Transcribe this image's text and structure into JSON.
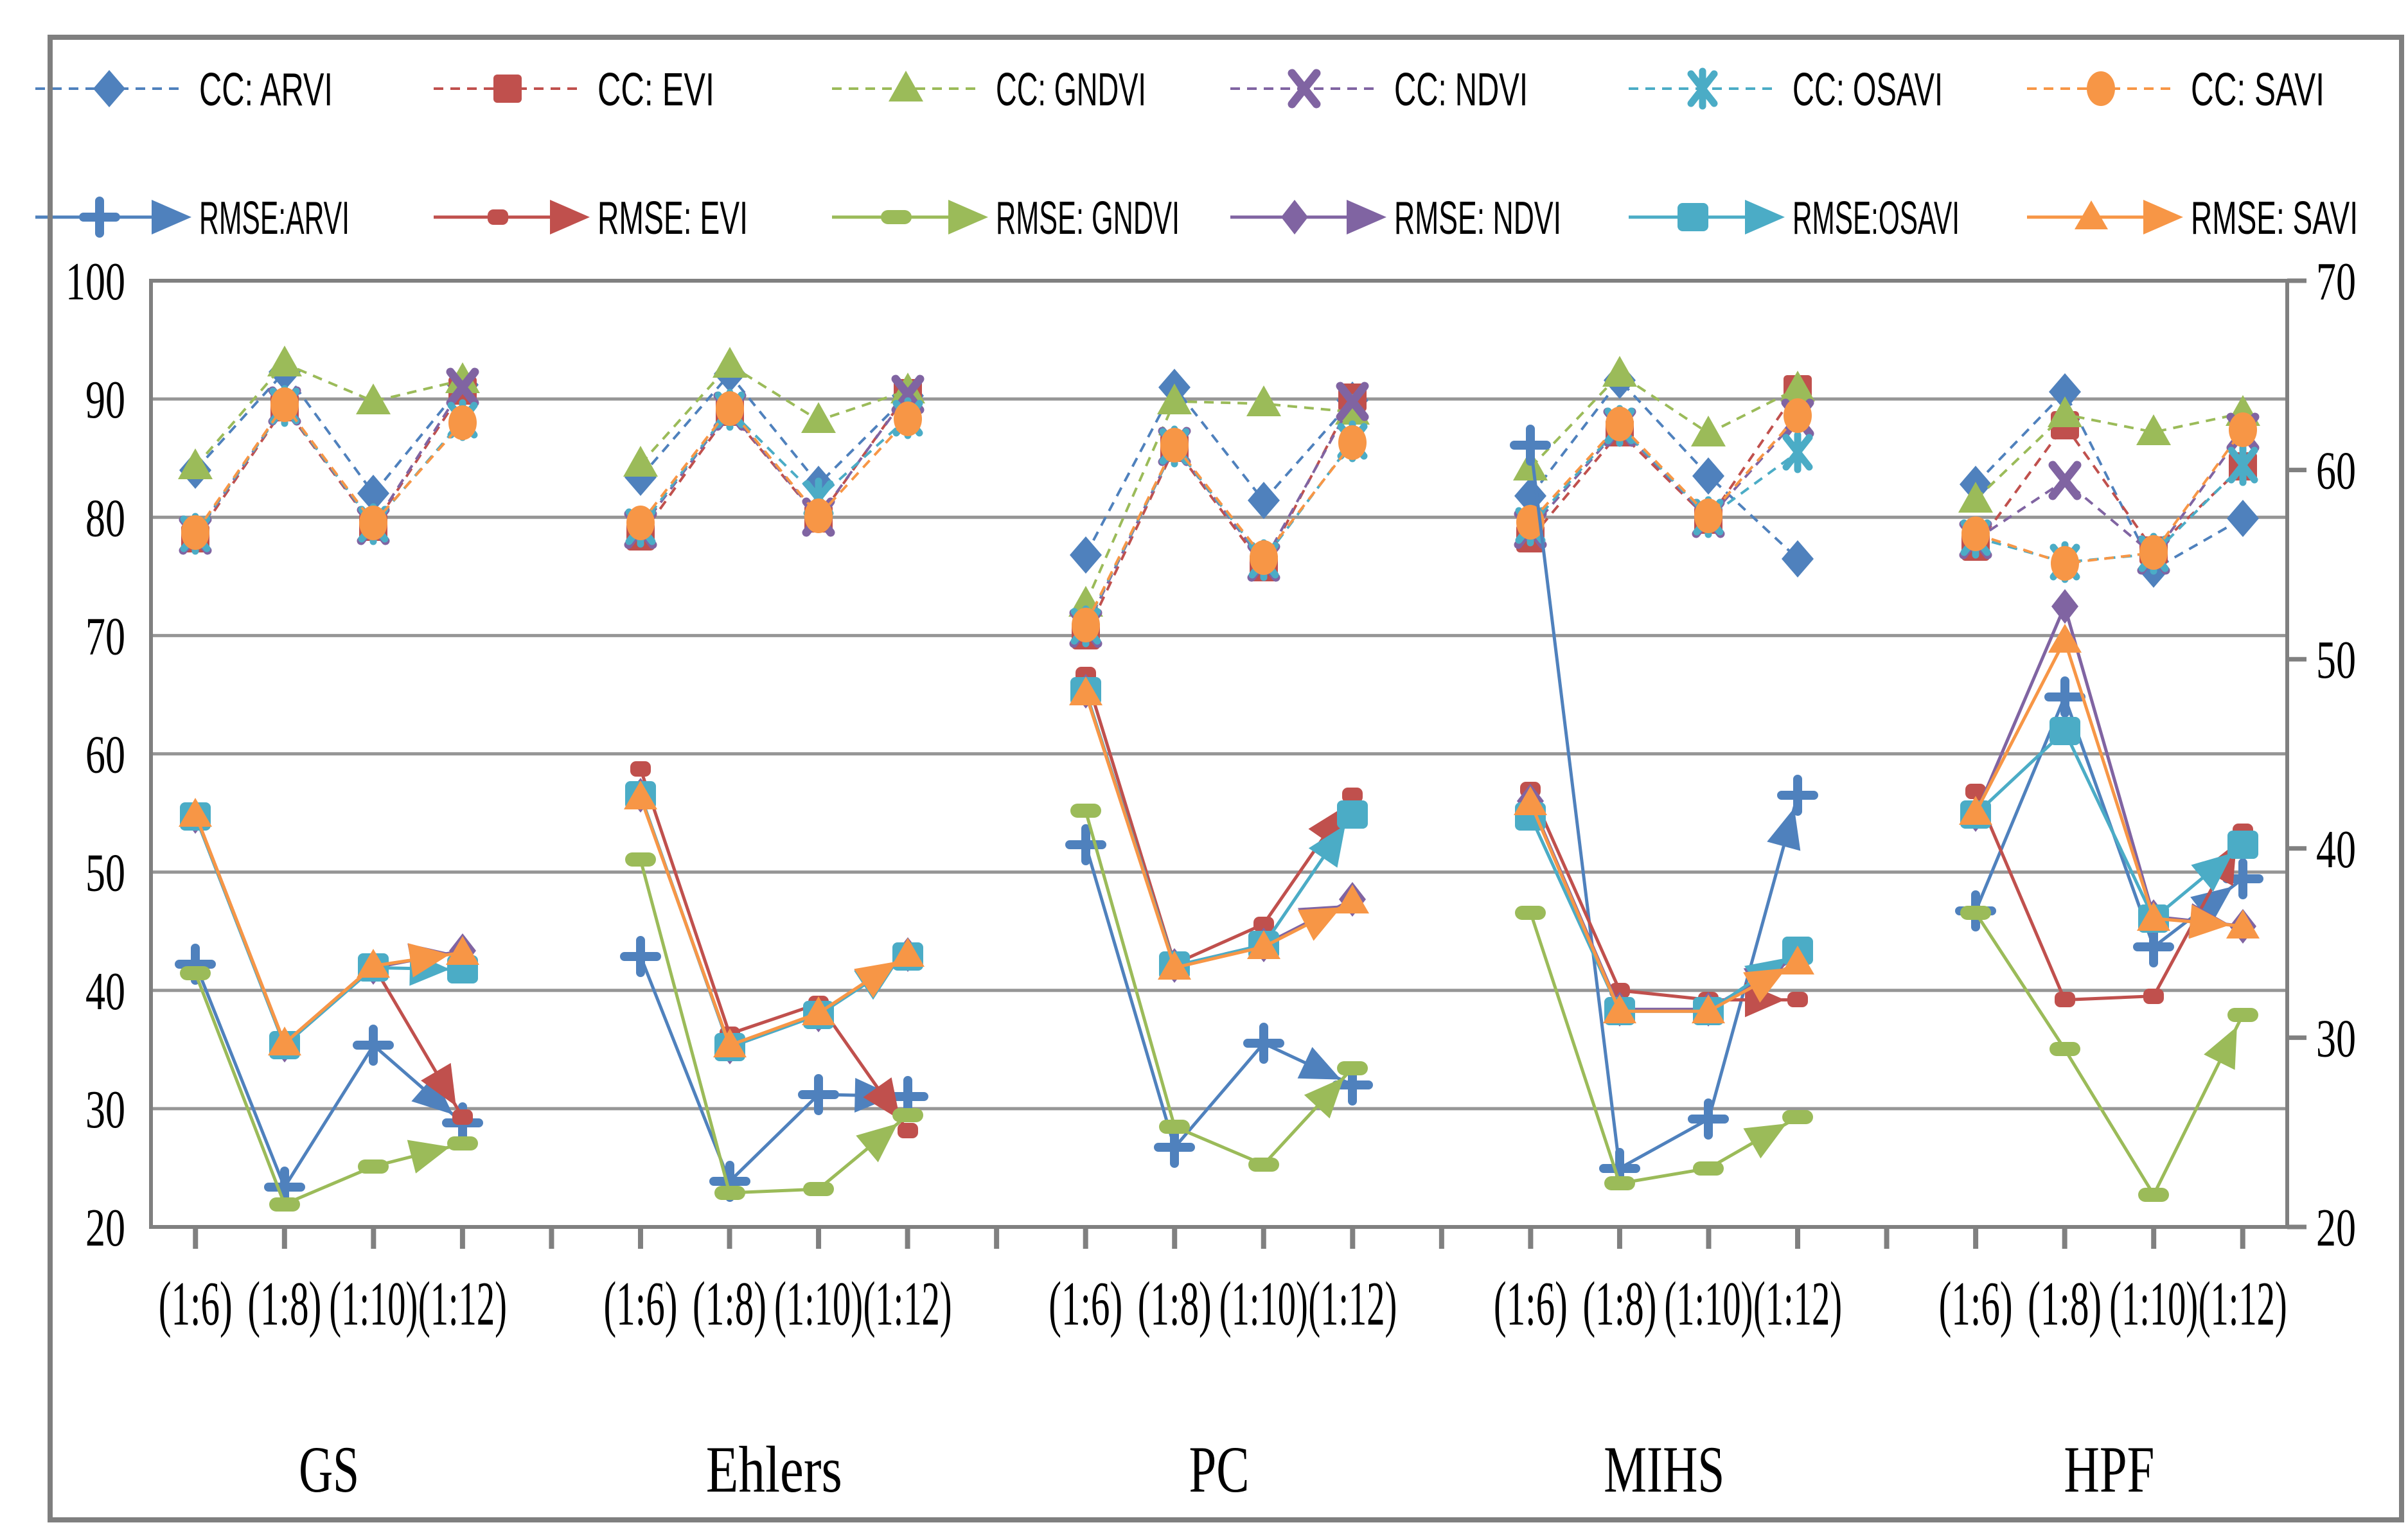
{
  "figure": {
    "background": "#ffffff",
    "outer_border_color": "#7f7f7f",
    "plot_border_color": "#808080",
    "gridline_color": "#969696"
  },
  "chart_data": {
    "type": "line",
    "title": "",
    "groups": [
      "GS",
      "Ehlers",
      "PC",
      "MIHS",
      "HPF"
    ],
    "categories": [
      "(1:6)",
      "(1:8)",
      "(1:10)",
      "(1:12)"
    ],
    "left_axis": {
      "min": 20,
      "max": 100,
      "step": 10,
      "ticks": [
        100,
        90,
        80,
        70,
        60,
        50,
        40,
        30,
        20
      ]
    },
    "right_axis": {
      "min": 20,
      "max": 70,
      "step": 10,
      "ticks": [
        70,
        60,
        50,
        40,
        30,
        20
      ]
    },
    "grid": true,
    "legend_position": "top",
    "series": [
      {
        "name": "CC: ARVI",
        "axis": "left",
        "color": "#4F81BD",
        "marker": "diamond",
        "line": "dashed",
        "arrow": false,
        "values": [
          [
            84.0,
            92.3,
            82.0,
            91.2
          ],
          [
            83.4,
            92.1,
            82.8,
            90.3
          ],
          [
            76.8,
            91.0,
            81.4,
            89.9
          ],
          [
            81.8,
            91.6,
            83.5,
            76.5
          ],
          [
            82.8,
            90.6,
            75.6,
            79.9
          ]
        ]
      },
      {
        "name": "CC: EVI",
        "axis": "left",
        "color": "#C0504D",
        "marker": "square",
        "line": "dashed",
        "arrow": false,
        "values": [
          [
            78.2,
            89.3,
            79.2,
            90.7
          ],
          [
            78.4,
            88.9,
            79.9,
            90.5
          ],
          [
            70.0,
            85.9,
            75.8,
            90.1
          ],
          [
            78.2,
            87.2,
            79.8,
            90.8
          ],
          [
            77.5,
            87.8,
            77.2,
            84.3
          ]
        ]
      },
      {
        "name": "CC: GNDVI",
        "axis": "left",
        "color": "#9BBB59",
        "marker": "triangle",
        "line": "dashed",
        "arrow": false,
        "values": [
          [
            84.3,
            93.0,
            89.8,
            91.6
          ],
          [
            84.5,
            92.9,
            88.2,
            90.7
          ],
          [
            72.7,
            89.8,
            89.6,
            88.9
          ],
          [
            84.2,
            92.1,
            87.1,
            90.9
          ],
          [
            81.5,
            88.7,
            87.2,
            88.8
          ]
        ]
      },
      {
        "name": "CC: NDVI",
        "axis": "left",
        "color": "#8064A2",
        "marker": "xmark",
        "line": "dashed",
        "arrow": false,
        "values": [
          [
            78.5,
            89.4,
            79.3,
            91.0
          ],
          [
            79.0,
            89.0,
            80.0,
            90.4
          ],
          [
            70.6,
            86.0,
            76.2,
            89.8
          ],
          [
            79.0,
            87.6,
            79.9,
            88.4
          ],
          [
            78.1,
            83.1,
            76.8,
            87.2
          ]
        ]
      },
      {
        "name": "CC: OSAVI",
        "axis": "left",
        "color": "#4BACC6",
        "marker": "star",
        "line": "dashed",
        "arrow": false,
        "values": [
          [
            78.6,
            89.4,
            79.4,
            88.2
          ],
          [
            79.2,
            89.1,
            81.6,
            88.4
          ],
          [
            70.8,
            86.0,
            76.4,
            86.4
          ],
          [
            79.3,
            87.7,
            80.0,
            85.5
          ],
          [
            78.3,
            76.2,
            76.9,
            84.4
          ]
        ]
      },
      {
        "name": "CC: SAVI",
        "axis": "left",
        "color": "#F79646",
        "marker": "circle",
        "line": "dashed",
        "arrow": false,
        "values": [
          [
            78.7,
            89.5,
            79.5,
            88.0
          ],
          [
            79.5,
            89.2,
            80.1,
            88.3
          ],
          [
            70.9,
            86.1,
            76.6,
            86.3
          ],
          [
            79.6,
            87.9,
            80.1,
            88.6
          ],
          [
            78.6,
            76.1,
            77.0,
            87.4
          ]
        ]
      },
      {
        "name": "RMSE:ARVI",
        "axis": "right",
        "color": "#4F81BD",
        "marker": "plus",
        "line": "solid",
        "arrow": true,
        "values": [
          [
            33.9,
            22.1,
            29.6,
            25.5
          ],
          [
            34.3,
            22.4,
            27.0,
            26.9
          ],
          [
            40.2,
            24.2,
            29.7,
            27.5
          ],
          [
            61.3,
            23.1,
            25.7,
            42.8
          ],
          [
            36.7,
            48.0,
            34.8,
            38.4
          ]
        ]
      },
      {
        "name": "RMSE: EVI",
        "axis": "right",
        "color": "#C0504D",
        "marker": "sq-small",
        "line": "solid",
        "arrow": true,
        "values": [
          [
            41.8,
            29.7,
            33.8,
            25.8
          ],
          [
            44.2,
            30.2,
            31.8,
            25.1
          ],
          [
            49.2,
            33.9,
            36.0,
            42.8
          ],
          [
            43.1,
            32.5,
            32.0,
            32.0
          ],
          [
            43.0,
            32.0,
            32.2,
            40.9
          ]
        ]
      },
      {
        "name": "RMSE: GNDVI",
        "axis": "right",
        "color": "#9BBB59",
        "marker": "bar",
        "line": "solid",
        "arrow": true,
        "values": [
          [
            33.4,
            21.2,
            23.2,
            24.4
          ],
          [
            39.4,
            21.8,
            22.0,
            25.9
          ],
          [
            42.0,
            25.3,
            23.3,
            28.4
          ],
          [
            36.6,
            22.3,
            23.1,
            25.8
          ],
          [
            36.6,
            29.4,
            21.7,
            31.2
          ]
        ]
      },
      {
        "name": "RMSE: NDVI",
        "axis": "right",
        "color": "#8064A2",
        "marker": "dia2",
        "line": "solid",
        "arrow": true,
        "values": [
          [
            41.7,
            29.6,
            33.7,
            34.6
          ],
          [
            42.8,
            29.5,
            31.2,
            34.4
          ],
          [
            48.3,
            33.8,
            34.9,
            37.3
          ],
          [
            42.5,
            31.5,
            31.5,
            34.3
          ],
          [
            41.8,
            52.8,
            36.4,
            35.9
          ]
        ]
      },
      {
        "name": "RMSE:OSAVI",
        "axis": "right",
        "color": "#4BACC6",
        "marker": "sq-big",
        "line": "solid",
        "arrow": true,
        "values": [
          [
            41.7,
            29.6,
            33.7,
            33.6
          ],
          [
            42.8,
            29.5,
            31.2,
            34.3
          ],
          [
            48.3,
            33.8,
            34.9,
            41.8
          ],
          [
            41.7,
            31.4,
            31.4,
            34.6
          ],
          [
            41.8,
            46.2,
            36.3,
            40.2
          ]
        ]
      },
      {
        "name": "RMSE: SAVI",
        "axis": "right",
        "color": "#F79646",
        "marker": "tri2",
        "line": "solid",
        "arrow": true,
        "values": [
          [
            41.8,
            29.7,
            33.8,
            34.5
          ],
          [
            42.7,
            29.6,
            31.3,
            34.4
          ],
          [
            48.2,
            33.7,
            34.8,
            37.2
          ],
          [
            42.4,
            31.4,
            31.4,
            34.0
          ],
          [
            41.9,
            51.0,
            36.3,
            35.9
          ]
        ]
      }
    ]
  }
}
